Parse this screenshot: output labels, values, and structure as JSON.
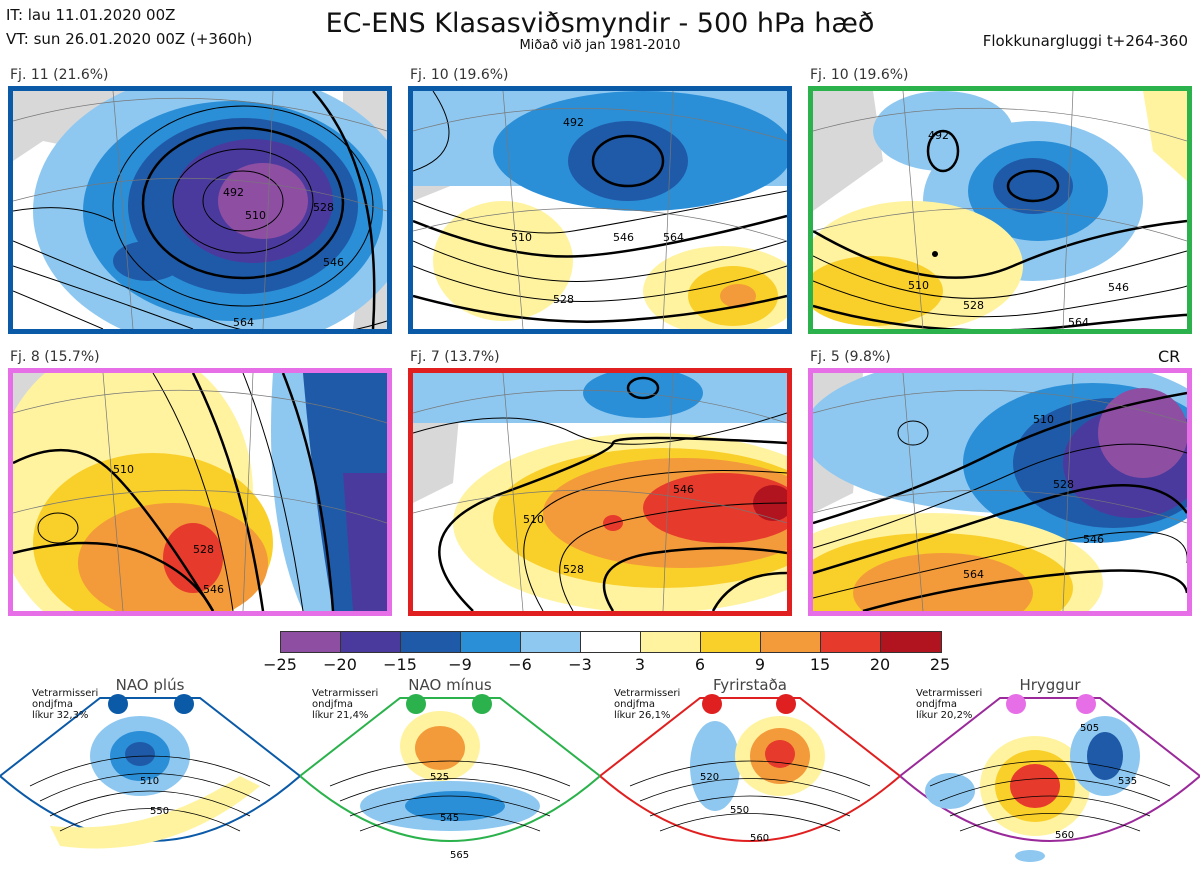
{
  "header": {
    "it_line": "IT: lau 11.01.2020 00Z",
    "vt_line": "VT: sun 26.01.2020 00Z  (+360h)",
    "title": "EC-ENS Klasasviðsmyndir - 500 hPa hæð",
    "subtitle": "Miðað við jan 1981-2010",
    "window": "Flokkunargluggi t+264-360"
  },
  "panels": [
    {
      "label": "Fj. 11 (21.6%)",
      "regime": "NAO plús",
      "border_color": "#0b5aa8",
      "contour_labels": [
        "492",
        "510",
        "528",
        "546",
        "564"
      ]
    },
    {
      "label": "Fj. 10 (19.6%)",
      "regime": "NAO plús",
      "border_color": "#0b5aa8",
      "contour_labels": [
        "492",
        "510",
        "528",
        "546",
        "564"
      ]
    },
    {
      "label": "Fj. 10 (19.6%)",
      "regime": "NAO mínus",
      "border_color": "#2bb24c",
      "contour_labels": [
        "492",
        "510",
        "528",
        "546",
        "564"
      ]
    },
    {
      "label": "Fj. 8 (15.7%)",
      "regime": "Hryggur",
      "border_color": "#e66ee6",
      "contour_labels": [
        "510",
        "528",
        "546"
      ]
    },
    {
      "label": "Fj. 7 (13.7%)",
      "regime": "Fyrirstaða",
      "border_color": "#e02020",
      "contour_labels": [
        "510",
        "528",
        "546"
      ]
    },
    {
      "label": "Fj. 5 (9.8%)",
      "regime": "Hryggur",
      "border_color": "#e66ee6",
      "contour_labels": [
        "510",
        "528",
        "546",
        "564"
      ],
      "tag": "CR"
    }
  ],
  "colorbar": {
    "colors": [
      "#8e4fa3",
      "#4b3a9e",
      "#1f5aa8",
      "#2b8fd8",
      "#8ec8f0",
      "#ffffff",
      "#fff3a0",
      "#f9cf2a",
      "#f39a3a",
      "#e63a2c",
      "#b2141f"
    ],
    "ticks": [
      "−25",
      "−20",
      "−15",
      "−9",
      "−6",
      "−3",
      "3",
      "6",
      "9",
      "15",
      "20",
      "25"
    ]
  },
  "regimes": [
    {
      "name": "NAO plús",
      "info": [
        "Vetrarmisseri",
        "ondjfma",
        "líkur 32,3%"
      ],
      "color": "#0b5aa8",
      "contour_labels": [
        "510",
        "550"
      ]
    },
    {
      "name": "NAO mínus",
      "info": [
        "Vetrarmisseri",
        "ondjfma",
        "líkur 21,4%"
      ],
      "color": "#2bb24c",
      "contour_labels": [
        "525",
        "545",
        "565"
      ]
    },
    {
      "name": "Fyrirstaða",
      "info": [
        "Vetrarmisseri",
        "ondjfma",
        "líkur 26,1%"
      ],
      "color": "#e02020",
      "contour_labels": [
        "520",
        "550",
        "560"
      ]
    },
    {
      "name": "Hryggur",
      "info": [
        "Vetrarmisseri",
        "ondjfma",
        "líkur 20,2%"
      ],
      "color": "#e66ee6",
      "contour_labels": [
        "505",
        "535",
        "560"
      ]
    }
  ]
}
